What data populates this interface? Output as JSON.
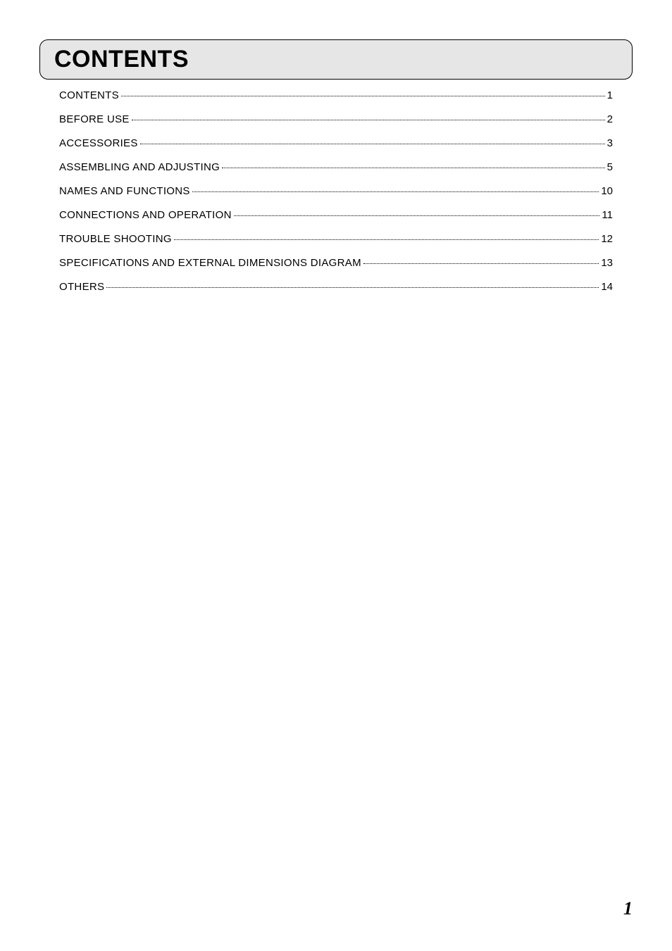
{
  "header": {
    "title": "CONTENTS"
  },
  "toc": {
    "entries": [
      {
        "label": "CONTENTS",
        "page": "1"
      },
      {
        "label": "BEFORE USE",
        "page": "2"
      },
      {
        "label": "ACCESSORIES",
        "page": "3"
      },
      {
        "label": "ASSEMBLING AND ADJUSTING",
        "page": "5"
      },
      {
        "label": "NAMES AND FUNCTIONS",
        "page": "10"
      },
      {
        "label": "CONNECTIONS AND OPERATION",
        "page": "11"
      },
      {
        "label": "TROUBLE SHOOTING",
        "page": "12"
      },
      {
        "label": "SPECIFICATIONS AND EXTERNAL DIMENSIONS DIAGRAM",
        "page": "13"
      },
      {
        "label": "OTHERS",
        "page": "14"
      }
    ]
  },
  "footer": {
    "page_number": "1"
  },
  "styles": {
    "background_color": "#ffffff",
    "title_box_bg": "#e6e6e6",
    "title_box_border": "#000000",
    "title_fontsize": 34,
    "toc_fontsize": 15,
    "text_color": "#000000",
    "page_number_fontsize": 26
  }
}
